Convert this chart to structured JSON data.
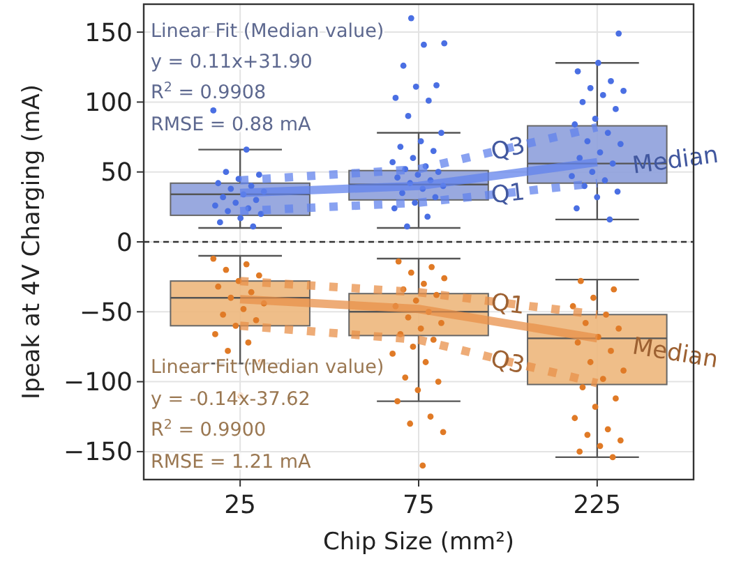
{
  "chart_data": {
    "type": "box",
    "xlabel": "Chip Size (mm²)",
    "ylabel": "Ipeak at 4V Charging (mA)",
    "categories": [
      "25",
      "75",
      "225"
    ],
    "ylim": [
      -170,
      170
    ],
    "yticks": [
      -150,
      -100,
      -50,
      0,
      50,
      100,
      150
    ],
    "grid": true,
    "ref_lines": [
      {
        "axis": "y",
        "value": 0,
        "color": "#333333",
        "line_style": "dashed"
      }
    ],
    "annotations": [
      "Linear Fit (Median value)",
      "y = 0.11x+31.90",
      "R$^{2}$ = 0.9908",
      "RMSE = 0.88 mA",
      "Linear Fit (Median value)",
      "y = -0.14x-37.62",
      "R$^{2}$ = 0.9900",
      "RMSE = 1.21 mA"
    ],
    "series": [
      {
        "color": "#8ea0dc",
        "boxes": [
          {
            "low": 10,
            "q1": 19,
            "median": 34,
            "q3": 42,
            "high": 66
          },
          {
            "low": 10,
            "q1": 30,
            "median": 41,
            "q3": 51,
            "high": 78
          },
          {
            "low": 16,
            "q1": 42,
            "median": 56,
            "q3": 83,
            "high": 128
          }
        ]
      },
      {
        "color": "#edb77c",
        "boxes": [
          {
            "low": -87,
            "q1": -60,
            "median": -40,
            "q3": -28,
            "high": -10
          },
          {
            "low": -114,
            "q1": -67,
            "median": -50,
            "q3": -37,
            "high": -12
          },
          {
            "low": -154,
            "q1": -102,
            "median": -69,
            "q3": -52,
            "high": -27
          }
        ]
      },
      {
        "type": "scatter",
        "color": "#4a6fe3",
        "x": [
          "25",
          "25",
          "25",
          "25",
          "25",
          "25",
          "25",
          "25",
          "25",
          "25",
          "25",
          "25",
          "25",
          "25",
          "25",
          "25",
          "25",
          "25",
          "25",
          "25",
          "75",
          "75",
          "75",
          "75",
          "75",
          "75",
          "75",
          "75",
          "75",
          "75",
          "75",
          "75",
          "75",
          "75",
          "75",
          "75",
          "75",
          "75",
          "75",
          "75",
          "75",
          "75",
          "75",
          "75",
          "75",
          "75",
          "75",
          "75",
          "75",
          "75",
          "225",
          "225",
          "225",
          "225",
          "225",
          "225",
          "225",
          "225",
          "225",
          "225",
          "225",
          "225",
          "225",
          "225",
          "225",
          "225",
          "225",
          "225",
          "225",
          "225",
          "225",
          "225",
          "225",
          "225",
          "225"
        ],
        "values": [
          94,
          66,
          50,
          48,
          45,
          42,
          40,
          38,
          36,
          34,
          32,
          30,
          28,
          26,
          24,
          22,
          20,
          17,
          14,
          11,
          160,
          142,
          141,
          126,
          112,
          111,
          103,
          101,
          90,
          78,
          72,
          68,
          65,
          60,
          57,
          54,
          52,
          50,
          48,
          46,
          44,
          42,
          40,
          38,
          35,
          32,
          28,
          24,
          18,
          11,
          149,
          128,
          122,
          115,
          110,
          108,
          105,
          100,
          95,
          88,
          84,
          78,
          72,
          70,
          64,
          60,
          56,
          50,
          47,
          44,
          40,
          36,
          32,
          24,
          16
        ]
      },
      {
        "type": "scatter",
        "color": "#e07a26",
        "x": [
          "25",
          "25",
          "25",
          "25",
          "25",
          "25",
          "25",
          "25",
          "25",
          "25",
          "25",
          "25",
          "25",
          "25",
          "25",
          "25",
          "25",
          "25",
          "75",
          "75",
          "75",
          "75",
          "75",
          "75",
          "75",
          "75",
          "75",
          "75",
          "75",
          "75",
          "75",
          "75",
          "75",
          "75",
          "75",
          "75",
          "75",
          "75",
          "75",
          "75",
          "75",
          "75",
          "75",
          "75",
          "225",
          "225",
          "225",
          "225",
          "225",
          "225",
          "225",
          "225",
          "225",
          "225",
          "225",
          "225",
          "225",
          "225",
          "225",
          "225",
          "225",
          "225",
          "225",
          "225",
          "225",
          "225",
          "225"
        ],
        "values": [
          -12,
          -16,
          -20,
          -24,
          -28,
          -32,
          -36,
          -40,
          -44,
          -48,
          -52,
          -56,
          -60,
          -66,
          -72,
          -78,
          -86,
          -110,
          -14,
          -18,
          -22,
          -26,
          -30,
          -34,
          -38,
          -42,
          -46,
          -50,
          -54,
          -58,
          -62,
          -66,
          -70,
          -75,
          -80,
          -86,
          -97,
          -100,
          -106,
          -114,
          -125,
          -130,
          -136,
          -160,
          -28,
          -34,
          -40,
          -46,
          -52,
          -58,
          -62,
          -68,
          -72,
          -78,
          -86,
          -92,
          -98,
          -104,
          -112,
          -118,
          -126,
          -134,
          -138,
          -142,
          -146,
          -150,
          -154
        ]
      },
      {
        "type": "line",
        "name": "Q3",
        "color": "#6283ec",
        "line_style": "dotted",
        "x": [
          "25",
          "75",
          "225"
        ],
        "values": [
          44,
          52,
          82
        ]
      },
      {
        "type": "line",
        "name": "Median",
        "color": "#6283ec",
        "line_style": "solid",
        "x": [
          "25",
          "75",
          "225"
        ],
        "values": [
          35,
          40,
          57
        ]
      },
      {
        "type": "line",
        "name": "Q1",
        "color": "#6283ec",
        "line_style": "dotted",
        "x": [
          "25",
          "75",
          "225"
        ],
        "values": [
          22,
          28,
          42
        ]
      },
      {
        "type": "line",
        "name": "Q1",
        "color": "#e8904a",
        "line_style": "dotted",
        "x": [
          "25",
          "75",
          "225"
        ],
        "values": [
          -28,
          -36,
          -52
        ]
      },
      {
        "type": "line",
        "name": "Median",
        "color": "#e8904a",
        "line_style": "solid",
        "x": [
          "25",
          "75",
          "225"
        ],
        "values": [
          -41,
          -48,
          -69
        ]
      },
      {
        "type": "line",
        "name": "Q3",
        "color": "#e8904a",
        "line_style": "dotted",
        "x": [
          "25",
          "75",
          "225"
        ],
        "values": [
          -60,
          -70,
          -101
        ]
      }
    ]
  }
}
